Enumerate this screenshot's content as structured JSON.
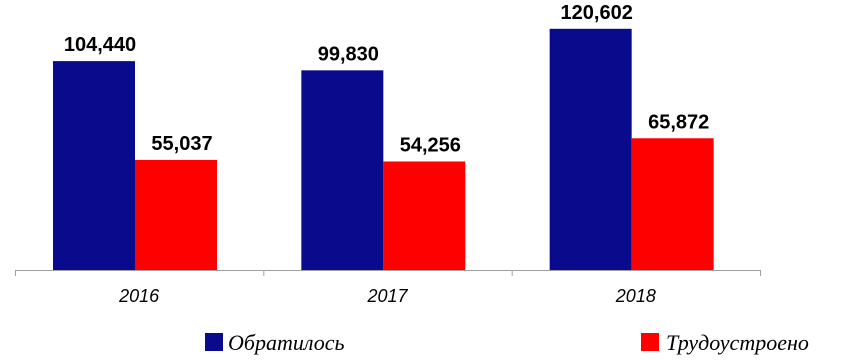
{
  "chart_data": {
    "type": "bar",
    "categories": [
      "2016",
      "2017",
      "2018"
    ],
    "series": [
      {
        "name": "Обратилось",
        "values": [
          104440,
          99830,
          120602
        ],
        "color": "#0a0a8c"
      },
      {
        "name": "Трудоустроено",
        "values": [
          55037,
          54256,
          65872
        ],
        "color": "#ff0000"
      }
    ],
    "data_labels": [
      [
        "104,440",
        "99,830",
        "120,602"
      ],
      [
        "55,037",
        "54,256",
        "65,872"
      ]
    ],
    "title": "",
    "xlabel": "",
    "ylabel": "",
    "ylim": [
      0,
      125000
    ],
    "grid": false,
    "legend": "bottom"
  }
}
